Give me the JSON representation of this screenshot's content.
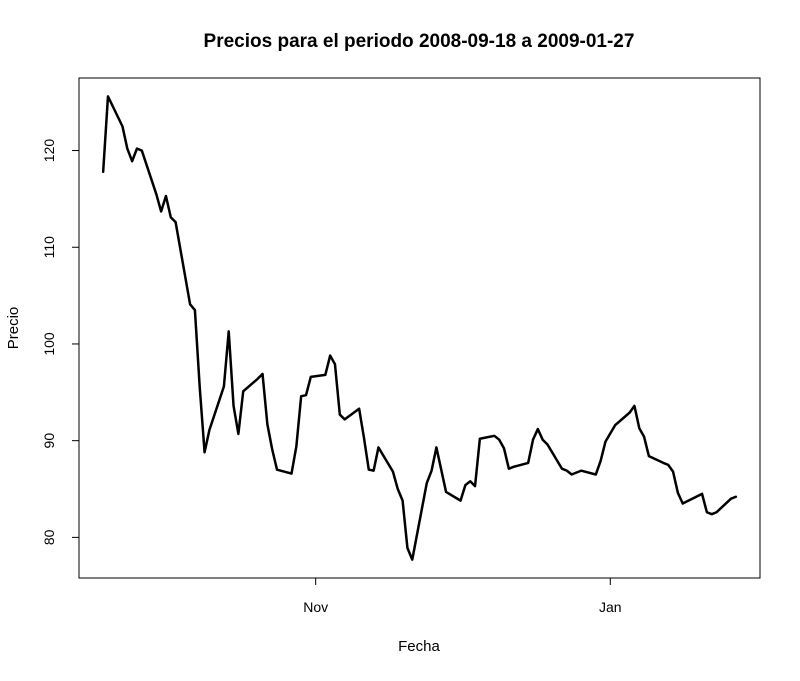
{
  "chart_data": {
    "type": "line",
    "title": "Precios para el periodo 2008-09-18 a 2009-01-27",
    "xlabel": "Fecha",
    "ylabel": "Precio",
    "x_ticks": [
      {
        "label": "Nov",
        "date": "2008-11-01"
      },
      {
        "label": "Jan",
        "date": "2009-01-01"
      }
    ],
    "y_ticks": [
      80,
      90,
      100,
      110,
      120
    ],
    "xlim": [
      "2008-09-13",
      "2009-02-01"
    ],
    "ylim": [
      75.8,
      127.5
    ],
    "grid": false,
    "legend": "none",
    "line_color": "#000000",
    "series": [
      {
        "x": [
          "2008-09-18",
          "2008-09-19",
          "2008-09-22",
          "2008-09-23",
          "2008-09-24",
          "2008-09-25",
          "2008-09-26",
          "2008-09-29",
          "2008-09-30",
          "2008-10-01",
          "2008-10-02",
          "2008-10-03",
          "2008-10-06",
          "2008-10-07",
          "2008-10-08",
          "2008-10-09",
          "2008-10-10",
          "2008-10-13",
          "2008-10-14",
          "2008-10-15",
          "2008-10-16",
          "2008-10-17",
          "2008-10-20",
          "2008-10-21",
          "2008-10-22",
          "2008-10-23",
          "2008-10-24",
          "2008-10-27",
          "2008-10-28",
          "2008-10-29",
          "2008-10-30",
          "2008-10-31",
          "2008-11-03",
          "2008-11-04",
          "2008-11-05",
          "2008-11-06",
          "2008-11-07",
          "2008-11-10",
          "2008-11-11",
          "2008-11-12",
          "2008-11-13",
          "2008-11-14",
          "2008-11-17",
          "2008-11-18",
          "2008-11-19",
          "2008-11-20",
          "2008-11-21",
          "2008-11-24",
          "2008-11-25",
          "2008-11-26",
          "2008-11-28",
          "2008-12-01",
          "2008-12-02",
          "2008-12-03",
          "2008-12-04",
          "2008-12-05",
          "2008-12-08",
          "2008-12-09",
          "2008-12-10",
          "2008-12-11",
          "2008-12-12",
          "2008-12-15",
          "2008-12-16",
          "2008-12-17",
          "2008-12-18",
          "2008-12-19",
          "2008-12-22",
          "2008-12-23",
          "2008-12-24",
          "2008-12-26",
          "2008-12-29",
          "2008-12-30",
          "2008-12-31",
          "2009-01-02",
          "2009-01-05",
          "2009-01-06",
          "2009-01-07",
          "2009-01-08",
          "2009-01-09",
          "2009-01-12",
          "2009-01-13",
          "2009-01-14",
          "2009-01-15",
          "2009-01-16",
          "2009-01-20",
          "2009-01-21",
          "2009-01-22",
          "2009-01-23",
          "2009-01-26",
          "2009-01-27"
        ],
        "values": [
          117.8,
          125.6,
          122.5,
          120.2,
          118.9,
          120.2,
          120.0,
          115.5,
          113.7,
          115.3,
          113.1,
          112.6,
          104.1,
          103.5,
          95.5,
          88.8,
          91.1,
          95.6,
          101.3,
          93.6,
          90.7,
          95.1,
          96.4,
          96.9,
          91.7,
          89.1,
          87.0,
          86.6,
          89.4,
          94.6,
          94.7,
          96.6,
          96.8,
          98.8,
          97.9,
          92.7,
          92.2,
          93.3,
          90.3,
          87.0,
          86.9,
          89.3,
          86.8,
          85.0,
          83.8,
          78.9,
          77.7,
          85.6,
          86.9,
          89.3,
          84.7,
          83.8,
          85.4,
          85.8,
          85.3,
          90.2,
          90.5,
          90.1,
          89.2,
          87.1,
          87.3,
          87.7,
          90.1,
          91.2,
          90.1,
          89.6,
          87.1,
          86.9,
          86.5,
          86.9,
          86.5,
          87.9,
          89.9,
          91.6,
          92.9,
          93.6,
          91.3,
          90.4,
          88.4,
          87.7,
          87.5,
          86.8,
          84.6,
          83.5,
          84.5,
          82.6,
          82.4,
          82.6,
          84.0,
          84.2
        ]
      }
    ]
  }
}
